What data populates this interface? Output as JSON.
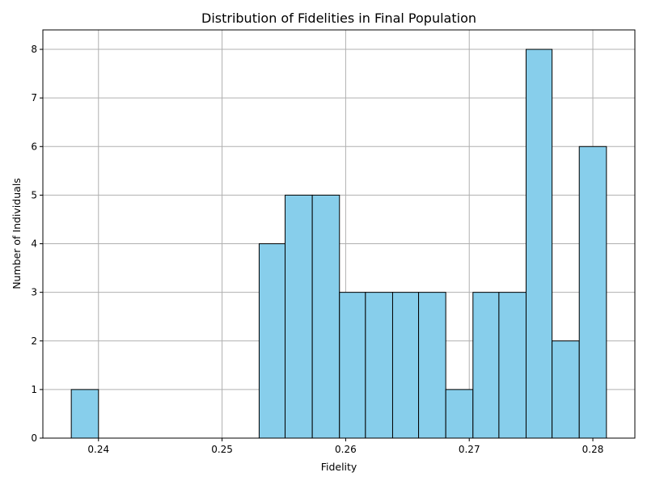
{
  "chart_data": {
    "type": "bar",
    "title": "Distribution of Fidelities in Final Population",
    "xlabel": "Fidelity",
    "ylabel": "Number of Individuals",
    "xlim": [
      0.2355,
      0.2834
    ],
    "ylim": [
      0,
      8.4
    ],
    "grid": true,
    "bar_color": "#87ceeb",
    "edge_color": "#000000",
    "bin_edges": [
      0.2378,
      0.24,
      0.2422,
      0.2443,
      0.2465,
      0.2486,
      0.2508,
      0.253,
      0.2551,
      0.2573,
      0.2595,
      0.2616,
      0.2638,
      0.2659,
      0.2681,
      0.2703,
      0.2724,
      0.2746,
      0.2767,
      0.2789,
      0.2811
    ],
    "counts": [
      1,
      0,
      0,
      0,
      0,
      0,
      0,
      4,
      5,
      5,
      3,
      3,
      3,
      3,
      1,
      3,
      3,
      8,
      2,
      6
    ],
    "x_ticks": [
      "0.24",
      "0.25",
      "0.26",
      "0.27",
      "0.28"
    ],
    "x_tick_values": [
      0.24,
      0.25,
      0.26,
      0.27,
      0.28
    ],
    "y_ticks": [
      "0",
      "1",
      "2",
      "3",
      "4",
      "5",
      "6",
      "7",
      "8"
    ],
    "y_tick_values": [
      0,
      1,
      2,
      3,
      4,
      5,
      6,
      7,
      8
    ]
  }
}
